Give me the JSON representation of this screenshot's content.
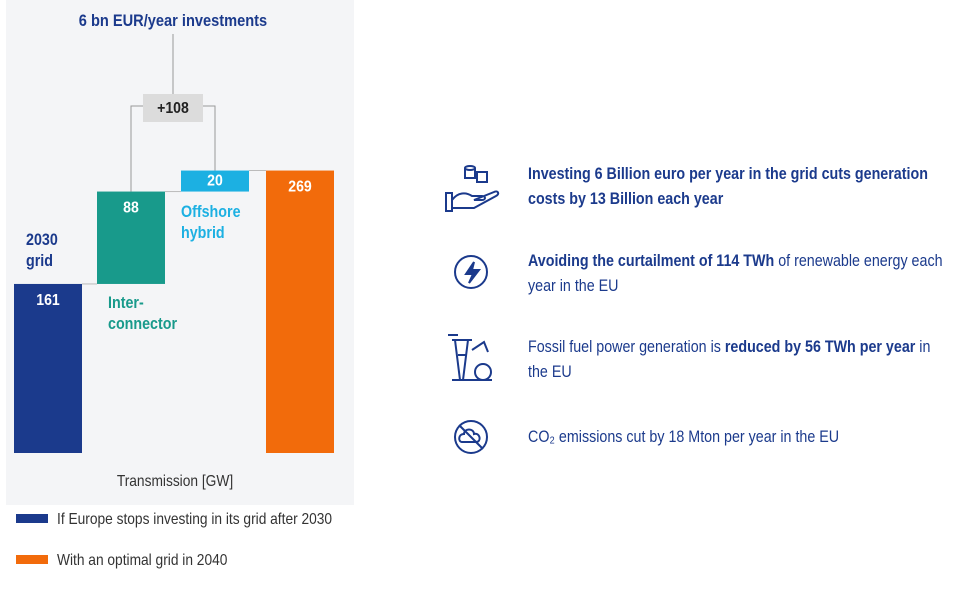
{
  "chart_data": {
    "type": "waterfall",
    "title": "6 bn EUR/year investments",
    "categories": [
      "2030\ngrid",
      "Inter-\nconnector",
      "Offshore\nhybrid",
      null
    ],
    "values": [
      161,
      88,
      20,
      269
    ],
    "measure": [
      "absolute",
      "relative",
      "relative",
      "total"
    ],
    "colors": [
      "#1b3a8c",
      "#189a8b",
      "#1cb0e2",
      "#f26b0b"
    ],
    "annotation": "+108",
    "xlabel": "Transmission [GW]",
    "legend": [
      {
        "name": "If Europe stops investing in its grid after 2030",
        "color": "#1b3a8c"
      },
      {
        "name": "With an optimal grid in 2040",
        "color": "#f26b0b"
      }
    ]
  },
  "highlights": [
    [
      {
        "text": "Investing 6 Billion euro per year in the grid cuts generation costs by 13 Billion each year",
        "bold": true
      }
    ],
    [
      {
        "text": "Avoiding the curtailment of 114 TWh",
        "bold": true
      },
      {
        "text": " of renewable energy each year in the EU",
        "bold": false
      }
    ],
    [
      {
        "text": "Fossil fuel power generation is ",
        "bold": false
      },
      {
        "text": "reduced by 56 TWh per year",
        "bold": true
      },
      {
        "text": " in the EU",
        "bold": false
      }
    ],
    [
      {
        "text": "CO₂ emissions cut by 18 Mton per year in the EU",
        "bold": false
      }
    ]
  ]
}
